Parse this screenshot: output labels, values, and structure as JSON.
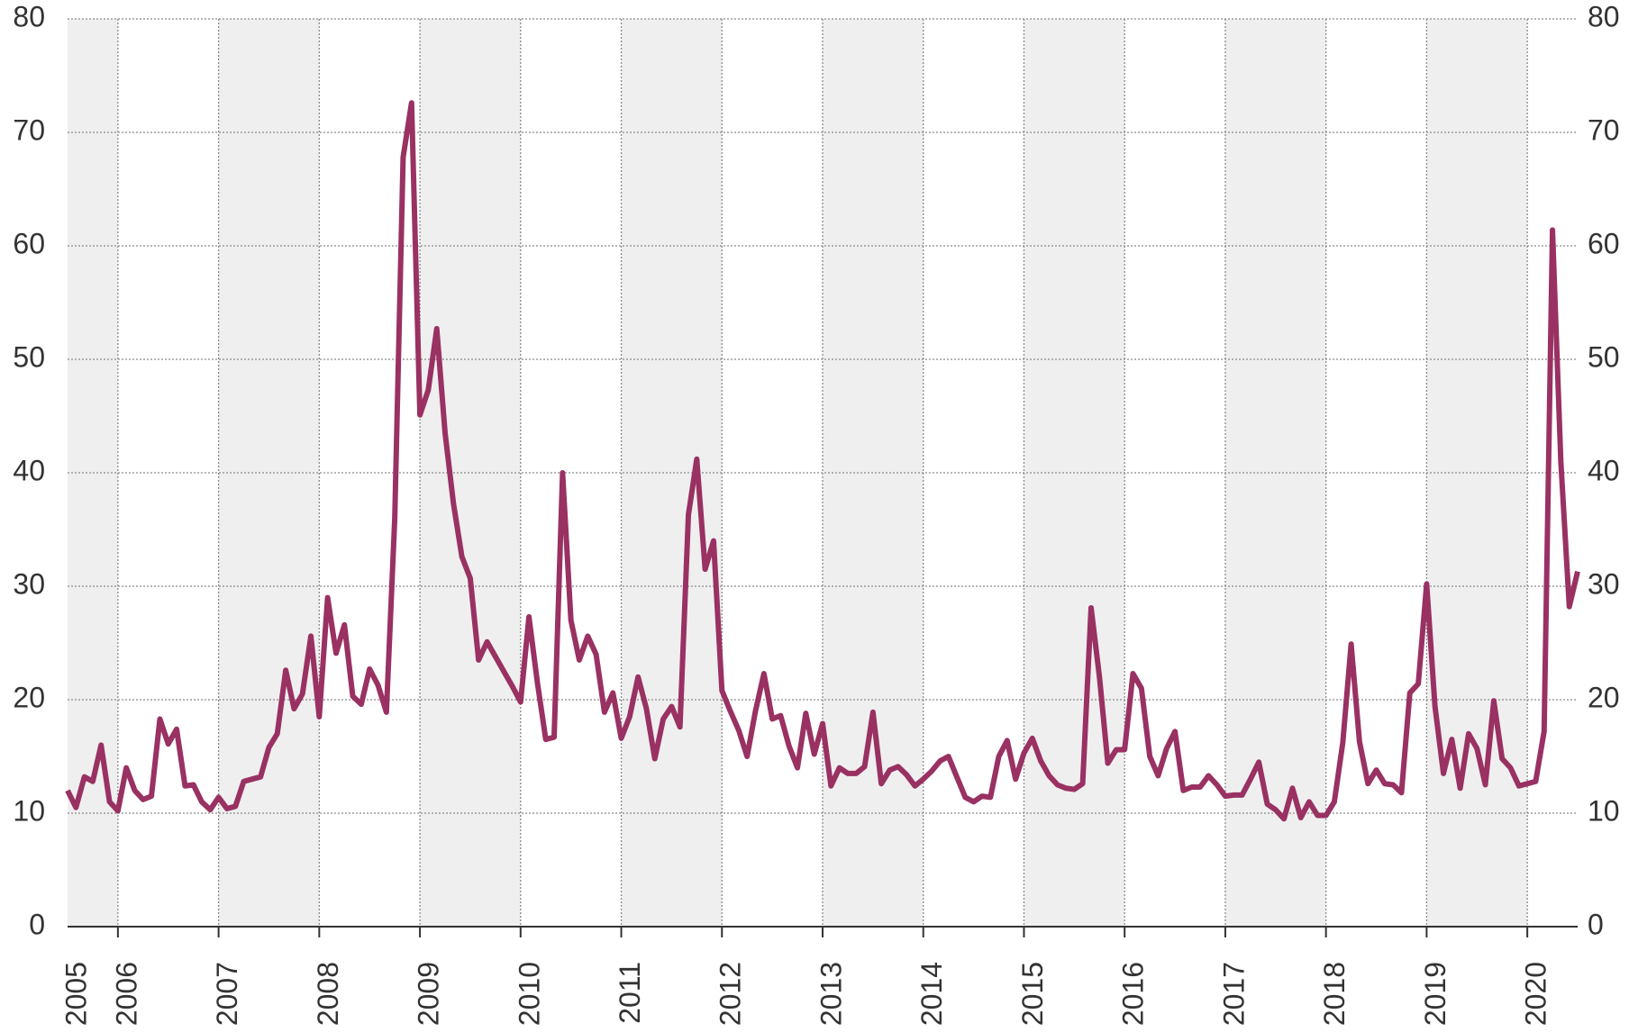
{
  "chart_data": {
    "type": "line",
    "color": "#993162",
    "grid": true,
    "xlim": [
      2005.5,
      2020.5
    ],
    "xticks": [
      2005,
      2006,
      2007,
      2008,
      2009,
      2010,
      2011,
      2012,
      2013,
      2014,
      2015,
      2016,
      2017,
      2018,
      2019,
      2020
    ],
    "ylim": [
      0,
      80
    ],
    "yticks": [
      0,
      10,
      20,
      30,
      40,
      50,
      60,
      70,
      80
    ],
    "x": [
      2005.5,
      2005.583,
      2005.667,
      2005.75,
      2005.833,
      2005.917,
      2006,
      2006.083,
      2006.167,
      2006.25,
      2006.333,
      2006.417,
      2006.5,
      2006.583,
      2006.667,
      2006.75,
      2006.833,
      2006.917,
      2007,
      2007.083,
      2007.167,
      2007.25,
      2007.333,
      2007.417,
      2007.5,
      2007.583,
      2007.667,
      2007.75,
      2007.833,
      2007.917,
      2008,
      2008.083,
      2008.167,
      2008.25,
      2008.333,
      2008.417,
      2008.5,
      2008.583,
      2008.667,
      2008.75,
      2008.833,
      2008.917,
      2009,
      2009.083,
      2009.167,
      2009.25,
      2009.333,
      2009.417,
      2009.5,
      2009.583,
      2009.667,
      2009.75,
      2009.833,
      2009.917,
      2010,
      2010.083,
      2010.167,
      2010.25,
      2010.333,
      2010.417,
      2010.5,
      2010.583,
      2010.667,
      2010.75,
      2010.833,
      2010.917,
      2011,
      2011.083,
      2011.167,
      2011.25,
      2011.333,
      2011.417,
      2011.5,
      2011.583,
      2011.667,
      2011.75,
      2011.833,
      2011.917,
      2012,
      2012.083,
      2012.167,
      2012.25,
      2012.333,
      2012.417,
      2012.5,
      2012.583,
      2012.667,
      2012.75,
      2012.833,
      2012.917,
      2013,
      2013.083,
      2013.167,
      2013.25,
      2013.333,
      2013.417,
      2013.5,
      2013.583,
      2013.667,
      2013.75,
      2013.833,
      2013.917,
      2014,
      2014.083,
      2014.167,
      2014.25,
      2014.333,
      2014.417,
      2014.5,
      2014.583,
      2014.667,
      2014.75,
      2014.833,
      2014.917,
      2015,
      2015.083,
      2015.167,
      2015.25,
      2015.333,
      2015.417,
      2015.5,
      2015.583,
      2015.667,
      2015.75,
      2015.833,
      2015.917,
      2016,
      2016.083,
      2016.167,
      2016.25,
      2016.333,
      2016.417,
      2016.5,
      2016.583,
      2016.667,
      2016.75,
      2016.833,
      2016.917,
      2017,
      2017.083,
      2017.167,
      2017.25,
      2017.333,
      2017.417,
      2017.5,
      2017.583,
      2017.667,
      2017.75,
      2017.833,
      2017.917,
      2018,
      2018.083,
      2018.167,
      2018.25,
      2018.333,
      2018.417,
      2018.5,
      2018.583,
      2018.667,
      2018.75,
      2018.833,
      2018.917,
      2019,
      2019.083,
      2019.167,
      2019.25,
      2019.333,
      2019.417,
      2019.5,
      2019.583,
      2019.667,
      2019.75,
      2019.833,
      2019.917,
      2020,
      2020.083,
      2020.167,
      2020.25,
      2020.333,
      2020.417,
      2020.5
    ],
    "values": [
      12,
      10.5,
      13.2,
      12.8,
      16,
      11,
      10.2,
      14,
      12,
      11.2,
      11.5,
      18.3,
      16.1,
      17.4,
      12.4,
      12.5,
      11,
      10.3,
      11.4,
      10.4,
      10.6,
      12.8,
      13,
      13.2,
      15.8,
      17,
      22.6,
      19.2,
      20.5,
      25.6,
      18.5,
      29,
      24.1,
      26.6,
      20.3,
      19.6,
      22.7,
      21.3,
      18.9,
      36,
      67.8,
      72.6,
      45.1,
      47.3,
      52.7,
      43.5,
      37.3,
      32.6,
      30.7,
      23.5,
      25.1,
      23.8,
      22.5,
      21.2,
      19.8,
      27.3,
      21.5,
      16.5,
      16.7,
      40,
      27,
      23.5,
      25.6,
      24,
      18.9,
      20.6,
      16.6,
      18.5,
      22,
      19.2,
      14.8,
      18.3,
      19.4,
      17.6,
      36.3,
      41.2,
      31.5,
      34,
      20.8,
      19,
      17.3,
      15,
      19,
      22.3,
      18.3,
      18.6,
      15.9,
      14,
      18.8,
      15.2,
      17.9,
      12.4,
      14,
      13.5,
      13.5,
      14.1,
      18.9,
      12.6,
      13.8,
      14.1,
      13.4,
      12.4,
      13,
      13.7,
      14.6,
      15,
      13.2,
      11.4,
      11,
      11.5,
      11.4,
      15,
      16.4,
      13,
      15.3,
      16.6,
      14.6,
      13.3,
      12.5,
      12.2,
      12.1,
      12.6,
      28.1,
      22,
      14.4,
      15.6,
      15.6,
      22.3,
      21,
      15,
      13.3,
      15.7,
      17.2,
      12,
      12.3,
      12.3,
      13.3,
      12.5,
      11.5,
      11.6,
      11.6,
      13,
      14.5,
      10.8,
      10.3,
      9.5,
      12.2,
      9.6,
      11,
      9.8,
      9.8,
      11,
      16.2,
      24.9,
      16.3,
      12.6,
      13.8,
      12.6,
      12.5,
      11.8,
      20.6,
      21.4,
      30.2,
      19.4,
      13.5,
      16.5,
      12.2,
      17,
      15.7,
      12.5,
      19.9,
      14.8,
      14,
      12.4,
      12.6,
      12.8,
      17.2,
      61.4,
      41,
      28.2,
      31.3
    ]
  }
}
